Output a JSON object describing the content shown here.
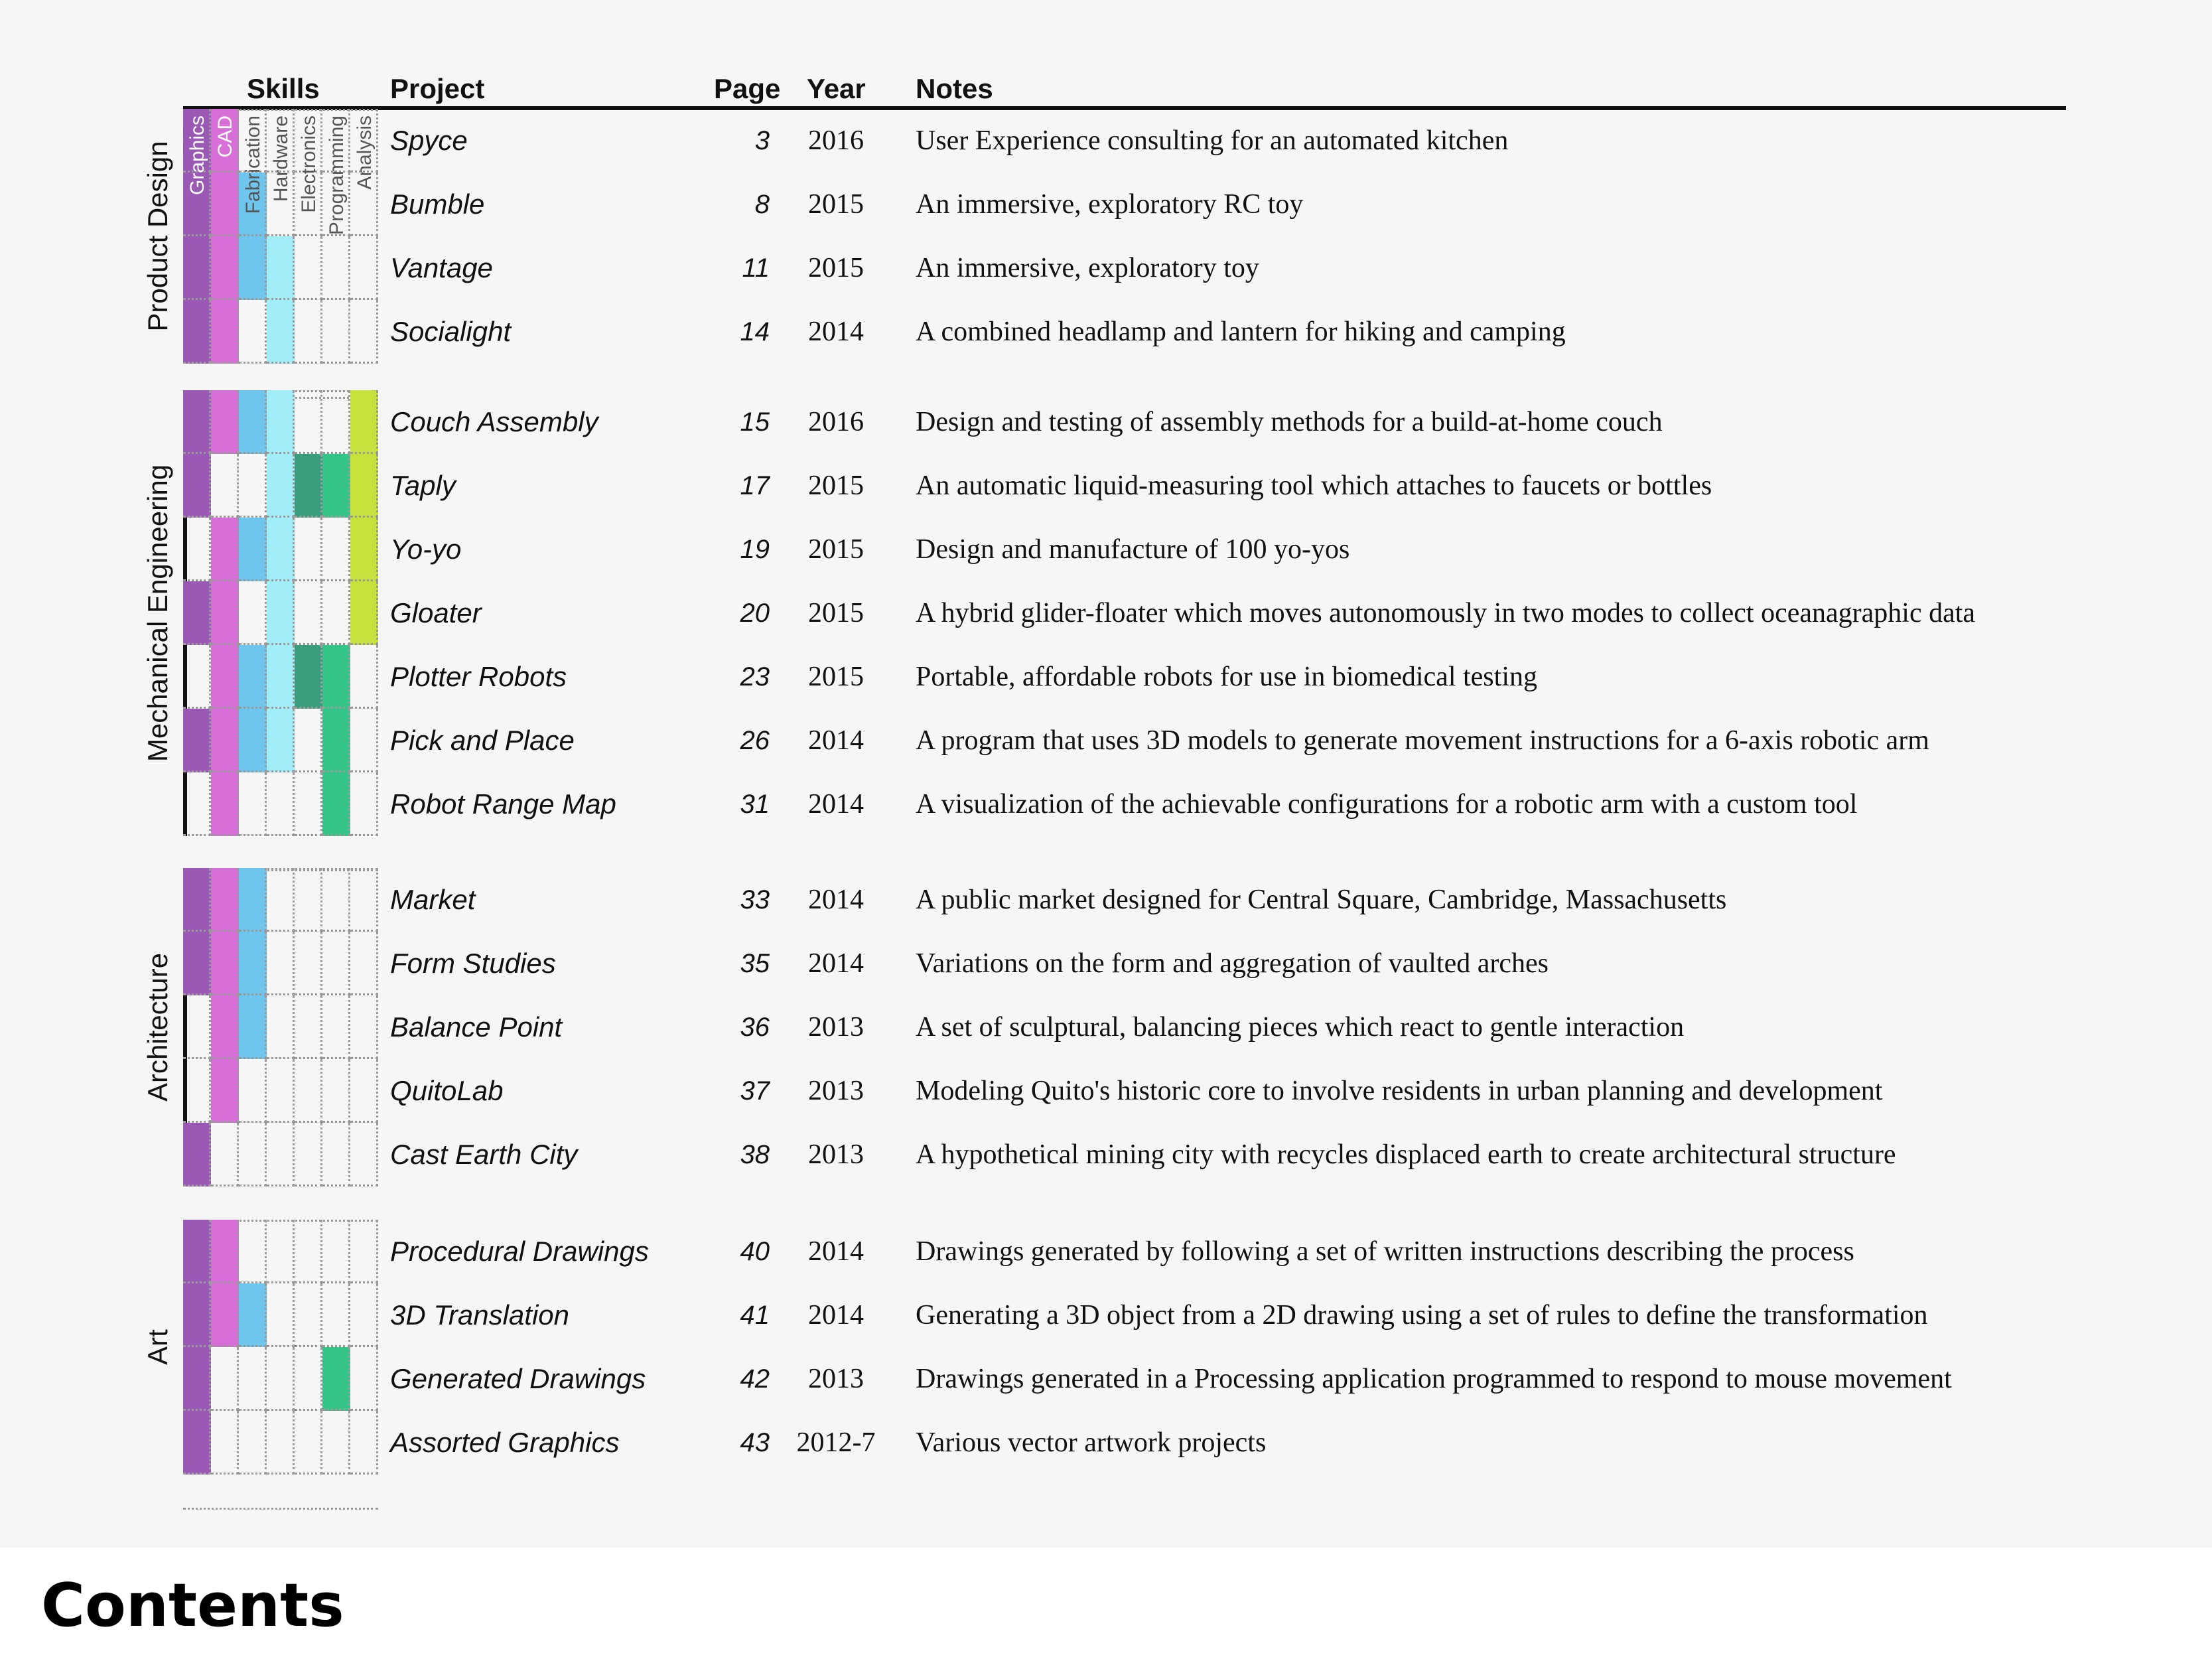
{
  "title": "Contents",
  "headers": {
    "skills": "Skills",
    "project": "Project",
    "page": "Page",
    "year": "Year",
    "notes": "Notes"
  },
  "skills": [
    {
      "name": "Graphics",
      "color": "#9b59b6"
    },
    {
      "name": "CAD",
      "color": "#d86fd8"
    },
    {
      "name": "Fabrication",
      "color": "#6ec6ee"
    },
    {
      "name": "Hardware",
      "color": "#a2eef8"
    },
    {
      "name": "Electronics",
      "color": "#3a9e7e"
    },
    {
      "name": "Programming",
      "color": "#35c487"
    },
    {
      "name": "Analysis",
      "color": "#c5e33c"
    }
  ],
  "sections": [
    {
      "name": "Product Design",
      "rows": [
        {
          "project": "Spyce",
          "page": "3",
          "year": "2016",
          "notes": "User Experience consulting for an automated kitchen",
          "skills": [
            1,
            1,
            0,
            0,
            0,
            0,
            0
          ]
        },
        {
          "project": "Bumble",
          "page": "8",
          "year": "2015",
          "notes": "An immersive, exploratory RC toy",
          "skills": [
            1,
            1,
            1,
            0,
            0,
            0,
            0
          ]
        },
        {
          "project": "Vantage",
          "page": "11",
          "year": "2015",
          "notes": "An immersive, exploratory toy",
          "skills": [
            1,
            1,
            1,
            1,
            0,
            0,
            0
          ]
        },
        {
          "project": "Socialight",
          "page": "14",
          "year": "2014",
          "notes": "A combined headlamp and lantern for hiking and camping",
          "skills": [
            1,
            1,
            0,
            1,
            0,
            0,
            0
          ]
        }
      ]
    },
    {
      "name": "Mechanical Engineering",
      "rows": [
        {
          "project": "Couch Assembly",
          "page": "15",
          "year": "2016",
          "notes": "Design and testing of assembly methods for a build-at-home couch",
          "skills": [
            1,
            1,
            1,
            1,
            0,
            0,
            1
          ]
        },
        {
          "project": "Taply",
          "page": "17",
          "year": "2015",
          "notes": "An automatic liquid-measuring tool which attaches to faucets or bottles",
          "skills": [
            1,
            0,
            0,
            1,
            1,
            1,
            1
          ]
        },
        {
          "project": "Yo-yo",
          "page": "19",
          "year": "2015",
          "notes": "Design and manufacture of 100 yo-yos",
          "skills": [
            0,
            1,
            1,
            1,
            0,
            0,
            1
          ]
        },
        {
          "project": "Gloater",
          "page": "20",
          "year": "2015",
          "notes": "A hybrid glider-floater which moves autonomously in two modes to collect oceanagraphic data",
          "skills": [
            1,
            1,
            0,
            1,
            0,
            0,
            1
          ]
        },
        {
          "project": "Plotter Robots",
          "page": "23",
          "year": "2015",
          "notes": "Portable, affordable robots for use in biomedical testing",
          "skills": [
            0,
            1,
            1,
            1,
            1,
            1,
            0
          ]
        },
        {
          "project": "Pick and Place",
          "page": "26",
          "year": "2014",
          "notes": "A program that uses 3D models to generate movement instructions for a 6-axis robotic arm",
          "skills": [
            1,
            1,
            1,
            1,
            0,
            1,
            0
          ]
        },
        {
          "project": "Robot Range Map",
          "page": "31",
          "year": "2014",
          "notes": "A visualization of the achievable configurations for a robotic arm with a custom tool",
          "skills": [
            0,
            1,
            0,
            0,
            0,
            1,
            0
          ]
        }
      ]
    },
    {
      "name": "Architecture",
      "rows": [
        {
          "project": "Market",
          "page": "33",
          "year": "2014",
          "notes": "A public market designed for Central Square, Cambridge, Massachusetts",
          "skills": [
            1,
            1,
            1,
            0,
            0,
            0,
            0
          ]
        },
        {
          "project": "Form Studies",
          "page": "35",
          "year": "2014",
          "notes": "Variations on the form and aggregation of vaulted arches",
          "skills": [
            1,
            1,
            1,
            0,
            0,
            0,
            0
          ]
        },
        {
          "project": "Balance Point",
          "page": "36",
          "year": "2013",
          "notes": "A set of sculptural, balancing pieces which react to gentle interaction",
          "skills": [
            0,
            1,
            1,
            0,
            0,
            0,
            0
          ]
        },
        {
          "project": "QuitoLab",
          "page": "37",
          "year": "2013",
          "notes": "Modeling Quito's historic core to involve residents in urban planning and development",
          "skills": [
            0,
            1,
            0,
            0,
            0,
            0,
            0
          ]
        },
        {
          "project": "Cast Earth City",
          "page": "38",
          "year": "2013",
          "notes": "A hypothetical mining city with recycles displaced earth to create architectural structure",
          "skills": [
            1,
            0,
            0,
            0,
            0,
            0,
            0
          ]
        }
      ]
    },
    {
      "name": "Art",
      "rows": [
        {
          "project": "Procedural Drawings",
          "page": "40",
          "year": "2014",
          "notes": "Drawings generated by following a set of written instructions describing the process",
          "skills": [
            1,
            1,
            0,
            0,
            0,
            0,
            0
          ]
        },
        {
          "project": "3D Translation",
          "page": "41",
          "year": "2014",
          "notes": "Generating a 3D object from a 2D drawing using a set of rules to define the transformation",
          "skills": [
            1,
            1,
            1,
            0,
            0,
            0,
            0
          ]
        },
        {
          "project": "Generated Drawings",
          "page": "42",
          "year": "2013",
          "notes": "Drawings generated in a Processing application programmed to respond to mouse movement",
          "skills": [
            1,
            0,
            0,
            0,
            0,
            1,
            0
          ]
        },
        {
          "project": "Assorted Graphics",
          "page": "43",
          "year": "2012-7",
          "notes": "Various vector artwork projects",
          "skills": [
            1,
            0,
            0,
            0,
            0,
            0,
            0
          ]
        }
      ]
    }
  ]
}
